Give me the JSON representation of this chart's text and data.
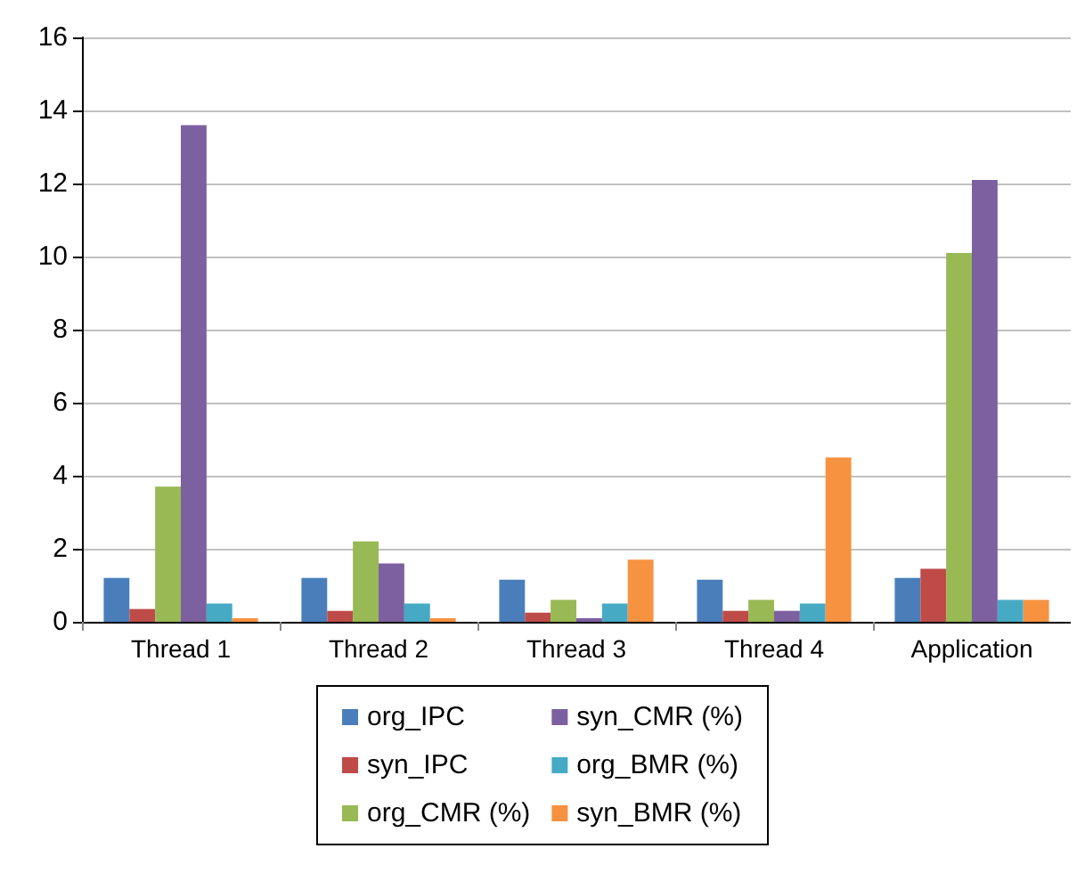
{
  "chart_data": {
    "type": "bar",
    "categories": [
      "Thread 1",
      "Thread 2",
      "Thread 3",
      "Thread 4",
      "Application"
    ],
    "series": [
      {
        "name": "org_IPC",
        "color": "#4a7ebb",
        "values": [
          1.2,
          1.2,
          1.15,
          1.15,
          1.2
        ]
      },
      {
        "name": "syn_IPC",
        "color": "#be4b48",
        "values": [
          0.35,
          0.3,
          0.25,
          0.3,
          1.45
        ]
      },
      {
        "name": "org_CMR (%)",
        "color": "#98b954",
        "values": [
          3.7,
          2.2,
          0.6,
          0.6,
          10.1
        ]
      },
      {
        "name": "syn_CMR (%)",
        "color": "#7d60a0",
        "values": [
          13.6,
          1.6,
          0.1,
          0.3,
          12.1
        ]
      },
      {
        "name": "org_BMR (%)",
        "color": "#46aac5",
        "values": [
          0.5,
          0.5,
          0.5,
          0.5,
          0.6
        ]
      },
      {
        "name": "syn_BMR (%)",
        "color": "#f69240",
        "values": [
          0.1,
          0.1,
          1.7,
          4.5,
          0.6
        ]
      }
    ],
    "ylim": [
      0,
      16
    ],
    "yticks": [
      0,
      2,
      4,
      6,
      8,
      10,
      12,
      14,
      16
    ],
    "grid": "y",
    "legend": "bottom"
  }
}
